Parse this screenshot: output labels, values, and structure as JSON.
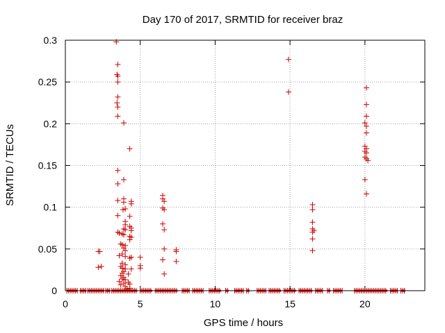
{
  "chart_data": {
    "type": "scatter",
    "title": "Day 170 of 2017, SRMTID for receiver braz",
    "xlabel": "GPS time / hours",
    "ylabel": "SRMTID / TECUs",
    "xlim": [
      0,
      24
    ],
    "ylim": [
      0,
      0.3
    ],
    "xticks": [
      0,
      5,
      10,
      15,
      20
    ],
    "yticks": [
      0,
      0.05,
      0.1,
      0.15,
      0.2,
      0.25,
      0.3
    ],
    "xtick_labels": [
      "0",
      "5",
      "10",
      "15",
      "20"
    ],
    "ytick_labels": [
      "0",
      "0.05",
      "0.1",
      "0.15",
      "0.2",
      "0.25",
      "0.3"
    ],
    "grid": true,
    "marker": "+",
    "color": "#cc0000",
    "series": [
      {
        "name": "SRMTID",
        "points": [
          [
            2.2,
            0.047
          ],
          [
            2.3,
            0.047
          ],
          [
            2.2,
            0.028
          ],
          [
            2.4,
            0.029
          ],
          [
            3.4,
            0.298
          ],
          [
            3.5,
            0.271
          ],
          [
            3.45,
            0.259
          ],
          [
            3.5,
            0.257
          ],
          [
            3.5,
            0.25
          ],
          [
            3.5,
            0.232
          ],
          [
            3.45,
            0.225
          ],
          [
            3.5,
            0.22
          ],
          [
            3.5,
            0.209
          ],
          [
            3.9,
            0.201
          ],
          [
            4.3,
            0.17
          ],
          [
            3.5,
            0.144
          ],
          [
            3.9,
            0.133
          ],
          [
            3.5,
            0.128
          ],
          [
            3.5,
            0.108
          ],
          [
            3.9,
            0.11
          ],
          [
            3.9,
            0.106
          ],
          [
            4.4,
            0.107
          ],
          [
            4.4,
            0.104
          ],
          [
            3.85,
            0.097
          ],
          [
            4.0,
            0.098
          ],
          [
            3.5,
            0.09
          ],
          [
            4.3,
            0.089
          ],
          [
            4.0,
            0.083
          ],
          [
            4.0,
            0.079
          ],
          [
            4.3,
            0.077
          ],
          [
            4.4,
            0.075
          ],
          [
            3.9,
            0.074
          ],
          [
            4.0,
            0.073
          ],
          [
            4.4,
            0.072
          ],
          [
            3.5,
            0.07
          ],
          [
            3.6,
            0.069
          ],
          [
            3.8,
            0.068
          ],
          [
            3.9,
            0.067
          ],
          [
            4.3,
            0.065
          ],
          [
            4.4,
            0.064
          ],
          [
            4.3,
            0.061
          ],
          [
            3.7,
            0.056
          ],
          [
            3.8,
            0.055
          ],
          [
            4.0,
            0.054
          ],
          [
            3.9,
            0.051
          ],
          [
            4.0,
            0.048
          ],
          [
            3.8,
            0.044
          ],
          [
            3.6,
            0.042
          ],
          [
            4.0,
            0.041
          ],
          [
            4.4,
            0.04
          ],
          [
            4.3,
            0.039
          ],
          [
            3.8,
            0.033
          ],
          [
            4.0,
            0.031
          ],
          [
            3.7,
            0.029
          ],
          [
            3.8,
            0.027
          ],
          [
            4.0,
            0.026
          ],
          [
            4.4,
            0.026
          ],
          [
            3.9,
            0.023
          ],
          [
            3.8,
            0.021
          ],
          [
            4.2,
            0.02
          ],
          [
            3.7,
            0.018
          ],
          [
            3.9,
            0.016
          ],
          [
            3.8,
            0.014
          ],
          [
            4.0,
            0.013
          ],
          [
            3.6,
            0.011
          ],
          [
            4.2,
            0.01
          ],
          [
            3.9,
            0.009
          ],
          [
            4.3,
            0.008
          ],
          [
            3.7,
            0.007
          ],
          [
            4.0,
            0.005
          ],
          [
            4.3,
            0.003
          ],
          [
            4.1,
            0.002
          ],
          [
            5.0,
            0.04
          ],
          [
            5.0,
            0.03
          ],
          [
            5.0,
            0.027
          ],
          [
            6.5,
            0.114
          ],
          [
            6.5,
            0.11
          ],
          [
            6.6,
            0.107
          ],
          [
            6.5,
            0.099
          ],
          [
            6.6,
            0.097
          ],
          [
            6.5,
            0.08
          ],
          [
            6.6,
            0.073
          ],
          [
            6.6,
            0.05
          ],
          [
            6.5,
            0.037
          ],
          [
            6.6,
            0.02
          ],
          [
            7.4,
            0.049
          ],
          [
            7.4,
            0.047
          ],
          [
            7.4,
            0.035
          ],
          [
            14.9,
            0.277
          ],
          [
            14.9,
            0.238
          ],
          [
            16.5,
            0.103
          ],
          [
            16.5,
            0.097
          ],
          [
            16.5,
            0.082
          ],
          [
            16.5,
            0.074
          ],
          [
            16.6,
            0.072
          ],
          [
            16.5,
            0.07
          ],
          [
            16.5,
            0.062
          ],
          [
            16.5,
            0.048
          ],
          [
            20.1,
            0.243
          ],
          [
            20.1,
            0.223
          ],
          [
            20.1,
            0.209
          ],
          [
            20.0,
            0.201
          ],
          [
            20.1,
            0.197
          ],
          [
            20.1,
            0.189
          ],
          [
            20.0,
            0.173
          ],
          [
            20.1,
            0.17
          ],
          [
            20.0,
            0.167
          ],
          [
            20.1,
            0.165
          ],
          [
            20.0,
            0.16
          ],
          [
            20.1,
            0.158
          ],
          [
            20.2,
            0.156
          ],
          [
            20.0,
            0.133
          ],
          [
            20.1,
            0.116
          ]
        ],
        "baseline_ranges": [
          [
            0.1,
            0.8
          ],
          [
            1.0,
            1.4
          ],
          [
            1.5,
            2.6
          ],
          [
            2.7,
            3.0
          ],
          [
            3.1,
            4.8
          ],
          [
            5.0,
            5.8
          ],
          [
            6.0,
            7.5
          ],
          [
            7.8,
            8.3
          ],
          [
            8.5,
            9.2
          ],
          [
            9.6,
            10.4
          ],
          [
            10.7,
            10.9
          ],
          [
            11.3,
            11.9
          ],
          [
            12.1,
            12.3
          ],
          [
            12.8,
            13.4
          ],
          [
            13.6,
            14.4
          ],
          [
            14.6,
            15.4
          ],
          [
            15.6,
            16.5
          ],
          [
            16.7,
            17.2
          ],
          [
            17.5,
            17.7
          ],
          [
            17.9,
            18.5
          ],
          [
            19.3,
            21.5
          ],
          [
            21.7,
            22.2
          ],
          [
            22.4,
            22.7
          ]
        ]
      }
    ]
  }
}
